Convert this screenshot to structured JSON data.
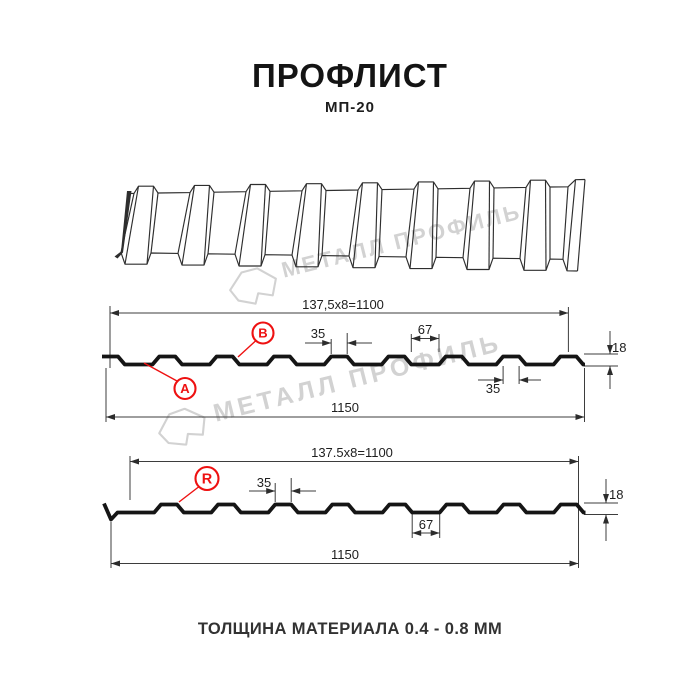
{
  "title": "ПРОФЛИСТ",
  "subtitle": "МП-20",
  "watermark_text": "МЕТАЛЛ ПРОФИЛЬ",
  "footer_note": "ТОЛЩИНА МАТЕРИАЛА 0.4 - 0.8 ММ",
  "colors": {
    "accent_red": "#ee1111",
    "watermark_gray": "#d2d2d2",
    "line_dark": "#151515"
  },
  "section_wall": {
    "pitch": "137,5x8=1100",
    "rib_top_width": "35",
    "rib_gap": "67",
    "rib_width_bottom": "35",
    "height": "18",
    "total": "1150",
    "label_a": "A",
    "label_b": "B"
  },
  "section_roof": {
    "pitch": "137.5x8=1100",
    "rib_top_width": "35",
    "rib_gap": "67",
    "height": "18",
    "total": "1150",
    "label_r": "R"
  }
}
